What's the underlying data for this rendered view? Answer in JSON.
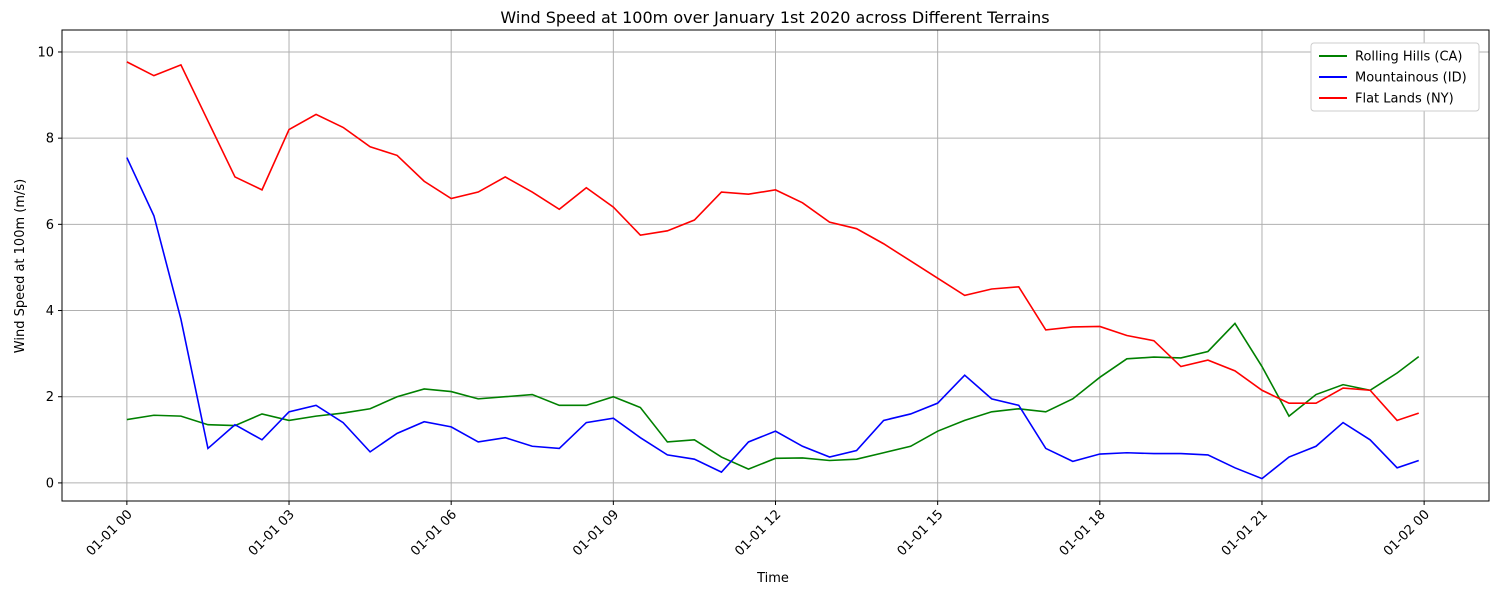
{
  "chart_data": {
    "type": "line",
    "title": "Wind Speed at 100m over January 1st 2020 across Different Terrains",
    "x_label": "Time",
    "y_label": "Wind Speed at 100m (m/s)",
    "x": [
      0,
      0.5,
      1,
      1.5,
      2,
      2.5,
      3,
      3.5,
      4,
      4.5,
      5,
      5.5,
      6,
      6.5,
      7,
      7.5,
      8,
      8.5,
      9,
      9.5,
      10,
      10.5,
      11,
      11.5,
      12,
      12.5,
      13,
      13.5,
      14,
      14.5,
      15,
      15.5,
      16,
      16.5,
      17,
      17.5,
      18,
      18.5,
      19,
      19.5,
      20,
      20.5,
      21,
      21.5,
      22,
      22.5,
      23,
      23.5,
      23.9
    ],
    "series": [
      {
        "name": "Rolling Hills (CA)",
        "color": "#008000",
        "values": [
          1.47,
          1.57,
          1.55,
          1.35,
          1.33,
          1.6,
          1.45,
          1.55,
          1.62,
          1.72,
          2.0,
          2.18,
          2.12,
          1.95,
          2.0,
          2.05,
          1.8,
          1.8,
          2.0,
          1.75,
          0.95,
          1.0,
          0.6,
          0.32,
          0.57,
          0.58,
          0.52,
          0.55,
          0.7,
          0.85,
          1.2,
          1.45,
          1.65,
          1.72,
          1.65,
          1.95,
          2.45,
          2.88,
          2.92,
          2.9,
          3.05,
          3.7,
          2.7,
          1.55,
          2.05,
          2.28,
          2.15,
          2.55,
          2.93
        ]
      },
      {
        "name": "Mountainous (ID)",
        "color": "#0000ff",
        "values": [
          7.55,
          6.2,
          3.8,
          0.8,
          1.35,
          1.0,
          1.65,
          1.8,
          1.4,
          0.72,
          1.15,
          1.42,
          1.3,
          0.95,
          1.05,
          0.85,
          0.8,
          1.4,
          1.5,
          1.05,
          0.65,
          0.55,
          0.25,
          0.95,
          1.2,
          0.85,
          0.6,
          0.75,
          1.45,
          1.6,
          1.85,
          2.5,
          1.95,
          1.8,
          0.8,
          0.5,
          0.67,
          0.7,
          0.68,
          0.68,
          0.65,
          0.35,
          0.1,
          0.6,
          0.85,
          1.4,
          1.0,
          0.35,
          0.52
        ]
      },
      {
        "name": "Flat Lands (NY)",
        "color": "#ff0000",
        "values": [
          9.77,
          9.45,
          9.7,
          8.4,
          7.1,
          6.8,
          8.2,
          8.55,
          8.25,
          7.8,
          7.6,
          7.0,
          6.6,
          6.75,
          7.1,
          6.75,
          6.35,
          6.85,
          6.4,
          5.75,
          5.85,
          6.1,
          6.75,
          6.7,
          6.8,
          6.5,
          6.05,
          5.9,
          5.55,
          5.15,
          4.75,
          4.35,
          4.5,
          4.55,
          3.55,
          3.62,
          3.63,
          3.42,
          3.3,
          2.7,
          2.85,
          2.6,
          2.15,
          1.85,
          1.85,
          2.2,
          2.15,
          1.45,
          1.62
        ]
      }
    ],
    "xlim": [
      -1.2,
      25.2
    ],
    "xticks": [
      {
        "value": 0,
        "label": "01-01 00"
      },
      {
        "value": 3,
        "label": "01-01 03"
      },
      {
        "value": 6,
        "label": "01-01 06"
      },
      {
        "value": 9,
        "label": "01-01 09"
      },
      {
        "value": 12,
        "label": "01-01 12"
      },
      {
        "value": 15,
        "label": "01-01 15"
      },
      {
        "value": 18,
        "label": "01-01 18"
      },
      {
        "value": 21,
        "label": "01-01 21"
      },
      {
        "value": 24,
        "label": "01-02 00"
      }
    ],
    "ylim": [
      -0.42,
      10.51
    ],
    "yticks": [
      0,
      2,
      4,
      6,
      8,
      10
    ],
    "grid": true,
    "legend": "upper-right"
  }
}
